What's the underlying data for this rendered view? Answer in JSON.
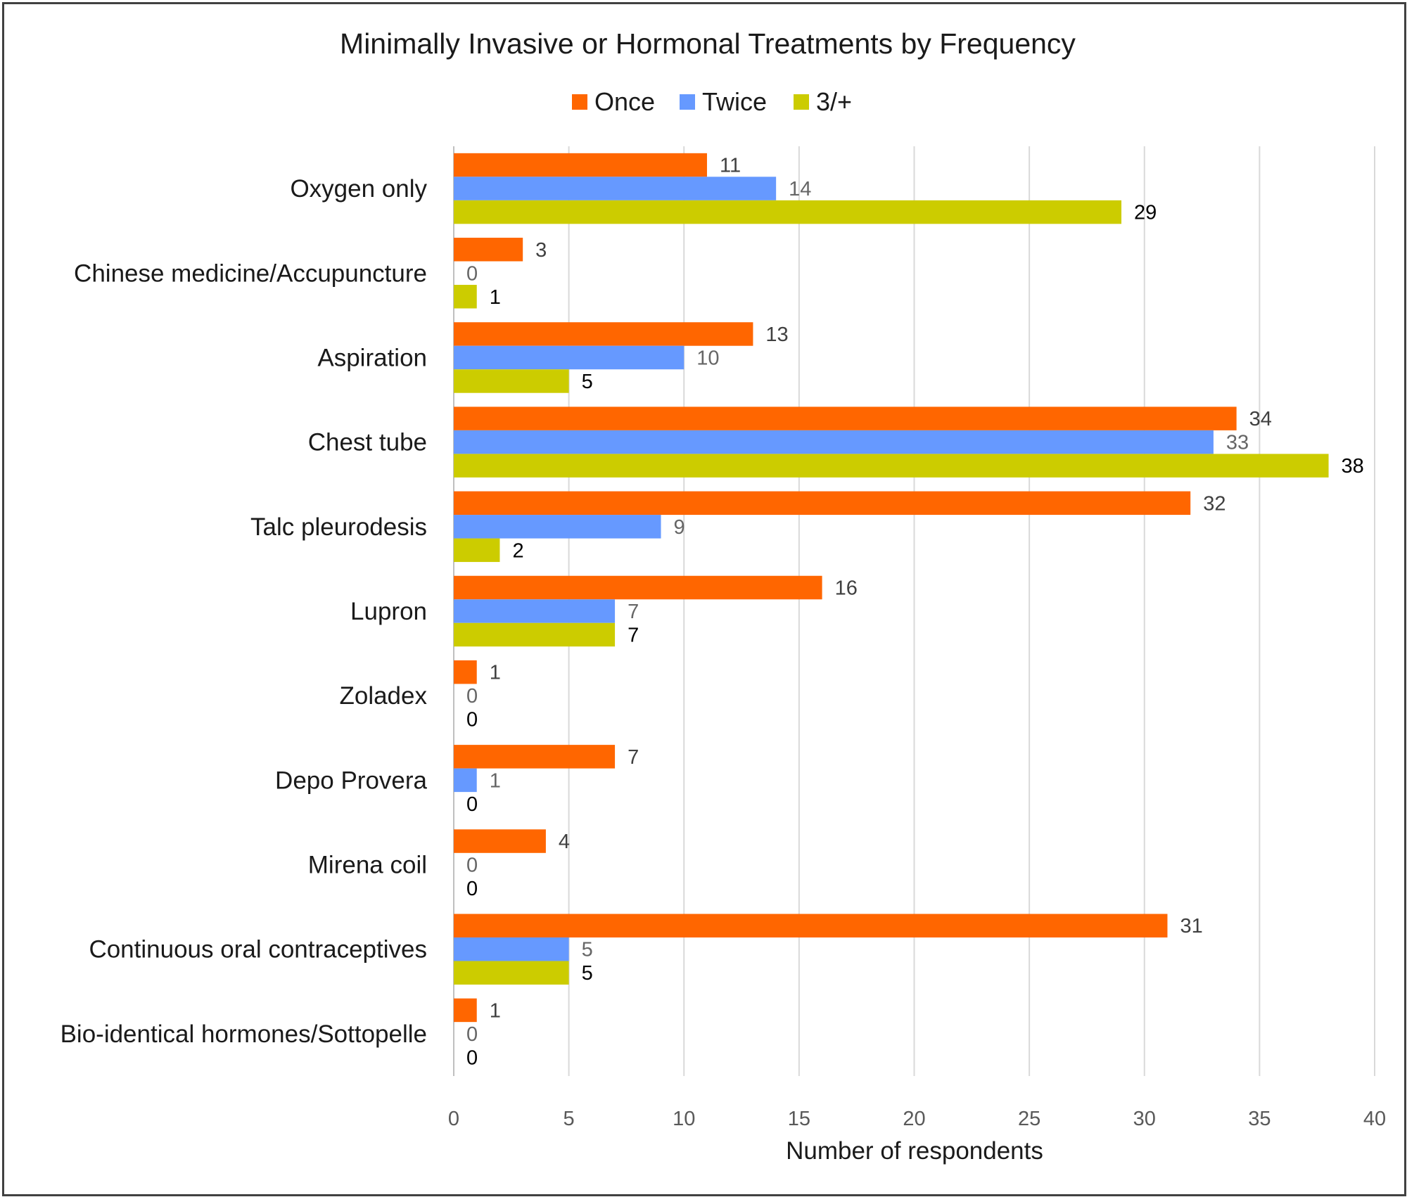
{
  "chart_data": {
    "type": "bar",
    "orientation": "horizontal",
    "title": "Minimally Invasive or Hormonal Treatments by Frequency",
    "xlabel": "Number of respondents",
    "ylabel": "",
    "xlim": [
      0,
      40
    ],
    "x_ticks": [
      0,
      5,
      10,
      15,
      20,
      25,
      30,
      35,
      40
    ],
    "grid": "vertical",
    "legend_position": "top",
    "categories": [
      "Oxygen only",
      "Chinese medicine/Accupuncture",
      "Aspiration",
      "Chest tube",
      "Talc pleurodesis",
      "Lupron",
      "Zoladex",
      "Depo Provera",
      "Mirena coil",
      "Continuous oral contraceptives",
      "Bio-identical hormones/Sottopelle"
    ],
    "series": [
      {
        "name": "Once",
        "color": "#ff6600",
        "label_color": "#404040",
        "values": [
          11,
          3,
          13,
          34,
          32,
          16,
          1,
          7,
          4,
          31,
          1
        ]
      },
      {
        "name": "Twice",
        "color": "#6699ff",
        "label_color": "#666666",
        "values": [
          14,
          0,
          10,
          33,
          9,
          7,
          0,
          1,
          0,
          5,
          0
        ]
      },
      {
        "name": "3/+",
        "color": "#cccc00",
        "label_color": "#000000",
        "values": [
          29,
          1,
          5,
          38,
          2,
          7,
          0,
          0,
          0,
          5,
          0
        ]
      }
    ]
  }
}
